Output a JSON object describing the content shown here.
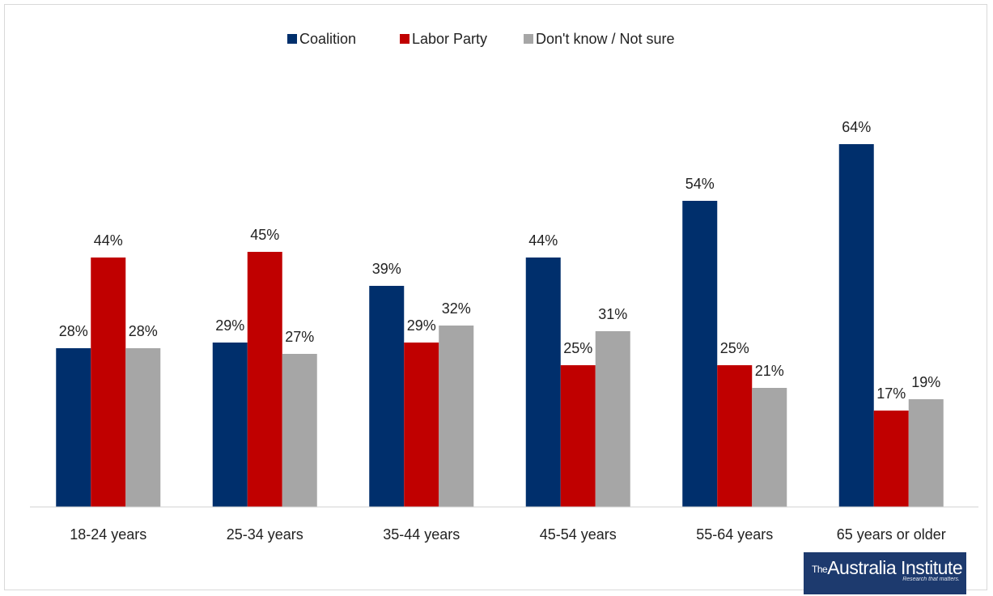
{
  "chart_data": {
    "type": "bar",
    "categories": [
      "18-24 years",
      "25-34 years",
      "35-44 years",
      "45-54 years",
      "55-64 years",
      "65 years or older"
    ],
    "series": [
      {
        "name": "Coalition",
        "values": [
          28,
          29,
          39,
          44,
          54,
          64
        ],
        "color": "#002f6c"
      },
      {
        "name": "Labor Party",
        "values": [
          44,
          45,
          29,
          25,
          25,
          17
        ],
        "color": "#c00000"
      },
      {
        "name": "Don't know / Not sure",
        "values": [
          28,
          27,
          32,
          31,
          21,
          19
        ],
        "color": "#a6a6a6"
      }
    ],
    "value_suffix": "%",
    "ylim": [
      0,
      70
    ],
    "grid": false,
    "legend": "top-center"
  },
  "logo": {
    "prefix": "The",
    "name": "Australia Institute",
    "tagline": "Research that matters."
  }
}
